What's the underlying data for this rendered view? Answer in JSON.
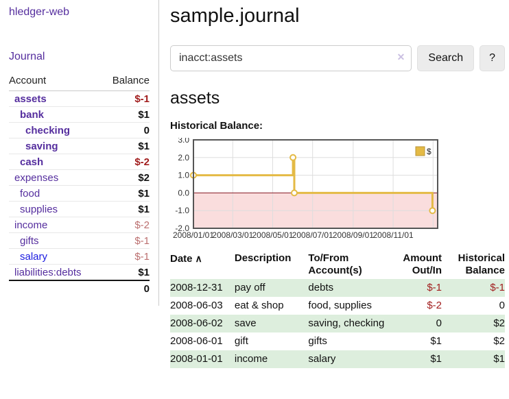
{
  "colors": {
    "link_purple": "#552e9e",
    "link_blue": "#1a1ae0",
    "negative": "#a11d1d",
    "negative_muted": "#bb6f6f",
    "row_stripe_green": "#ddeedd",
    "chart_line_gold": "#e4ba45",
    "chart_line_gold_border": "#b8943a",
    "chart_negative_fill": "#fadddd",
    "chart_zero_line": "#841620",
    "chart_grid": "#dddddd",
    "chart_border": "#555555"
  },
  "sidebar": {
    "brand": "hledger-web",
    "nav_journal": "Journal",
    "accounts": {
      "headers": [
        "Account",
        "Balance"
      ],
      "rows": [
        {
          "name": "assets",
          "depth": 0,
          "bold": true,
          "name_style": "purple",
          "balance": "$-1",
          "balance_style": "neg"
        },
        {
          "name": "bank",
          "depth": 1,
          "bold": true,
          "name_style": "purple",
          "balance": "$1",
          "balance_style": "pos"
        },
        {
          "name": "checking",
          "depth": 2,
          "bold": true,
          "name_style": "purple",
          "balance": "0",
          "balance_style": "pos"
        },
        {
          "name": "saving",
          "depth": 2,
          "bold": true,
          "name_style": "purple",
          "balance": "$1",
          "balance_style": "pos"
        },
        {
          "name": "cash",
          "depth": 1,
          "bold": true,
          "name_style": "purple",
          "balance": "$-2",
          "balance_style": "neg"
        },
        {
          "name": "expenses",
          "depth": 0,
          "bold": false,
          "name_style": "purple",
          "balance": "$2",
          "balance_style": "pos"
        },
        {
          "name": "food",
          "depth": 1,
          "bold": false,
          "name_style": "purple",
          "balance": "$1",
          "balance_style": "pos"
        },
        {
          "name": "supplies",
          "depth": 1,
          "bold": false,
          "name_style": "purple",
          "balance": "$1",
          "balance_style": "pos"
        },
        {
          "name": "income",
          "depth": 0,
          "bold": false,
          "name_style": "purple",
          "balance": "$-2",
          "balance_style": "neg-muted"
        },
        {
          "name": "gifts",
          "depth": 1,
          "bold": false,
          "name_style": "purple",
          "balance": "$-1",
          "balance_style": "neg-muted"
        },
        {
          "name": "salary",
          "depth": 1,
          "bold": false,
          "name_style": "blue",
          "balance": "$-1",
          "balance_style": "neg-muted"
        },
        {
          "name": "liabilities:debts",
          "depth": 0,
          "bold": false,
          "name_style": "purple",
          "balance": "$1",
          "balance_style": "pos"
        }
      ],
      "total": "0"
    }
  },
  "header": {
    "title": "sample.journal"
  },
  "search": {
    "value": "inacct:assets",
    "clear_icon": "✕",
    "button": "Search",
    "help_button": "?"
  },
  "account_page": {
    "heading": "assets",
    "chart_label": "Historical Balance:"
  },
  "chart_data": {
    "type": "line",
    "title": "Historical Balance:",
    "step": true,
    "ylim": [
      -2.0,
      3.0
    ],
    "yticks": [
      3.0,
      2.0,
      1.0,
      0.0,
      -1.0,
      -2.0
    ],
    "x_range": [
      "2008-01-01",
      "2009-01-08"
    ],
    "x_ticks": [
      {
        "date": "2008-01-01",
        "label": "2008/01/01",
        "grid": false
      },
      {
        "date": "2008-03-01",
        "label": "2008/03/01",
        "grid": true
      },
      {
        "date": "2008-05-01",
        "label": "2008/05/01",
        "grid": true
      },
      {
        "date": "2008-07-01",
        "label": "2008/07/01",
        "grid": true
      },
      {
        "date": "2008-09-01",
        "label": "2008/09/01",
        "grid": true
      },
      {
        "date": "2008-11-01",
        "label": "2008/11/01",
        "grid": true
      },
      {
        "date": "2009-01-01",
        "label": "",
        "grid": true
      }
    ],
    "series": [
      {
        "name": "$",
        "points": [
          [
            "2008-01-01",
            1.0
          ],
          [
            "2008-06-01",
            2.0
          ],
          [
            "2008-06-03",
            0.0
          ],
          [
            "2008-12-31",
            -1.0
          ]
        ]
      }
    ],
    "legend_position": "top-right",
    "grid": true,
    "negative_region_shaded": true
  },
  "register": {
    "headers": {
      "date": "Date",
      "sort_icon": "∧",
      "description": "Description",
      "accounts": "To/From Account(s)",
      "amount": "Amount Out/In",
      "balance": "Historical Balance"
    },
    "rows": [
      {
        "date": "2008-12-31",
        "description": "pay off",
        "accounts": "debts",
        "amount": "$-1",
        "amount_style": "neg",
        "balance": "$-1",
        "balance_style": "neg"
      },
      {
        "date": "2008-06-03",
        "description": "eat & shop",
        "accounts": "food, supplies",
        "amount": "$-2",
        "amount_style": "neg",
        "balance": "0",
        "balance_style": "pos"
      },
      {
        "date": "2008-06-02",
        "description": "save",
        "accounts": "saving, checking",
        "amount": "0",
        "amount_style": "pos",
        "balance": "$2",
        "balance_style": "pos"
      },
      {
        "date": "2008-06-01",
        "description": "gift",
        "accounts": "gifts",
        "amount": "$1",
        "amount_style": "pos",
        "balance": "$2",
        "balance_style": "pos"
      },
      {
        "date": "2008-01-01",
        "description": "income",
        "accounts": "salary",
        "amount": "$1",
        "amount_style": "pos",
        "balance": "$1",
        "balance_style": "pos"
      }
    ]
  }
}
